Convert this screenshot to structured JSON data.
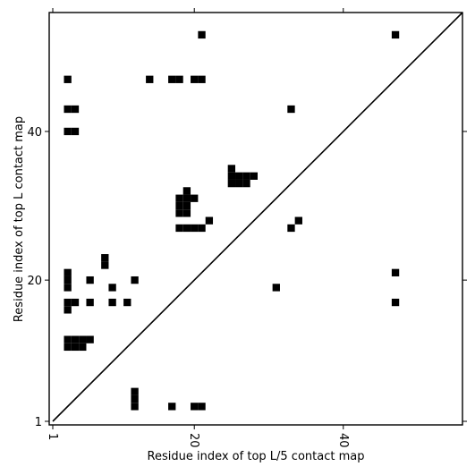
{
  "chart_data": {
    "type": "heatmap",
    "title": "",
    "xlabel": "Residue index of top L/5 contact map",
    "ylabel": "Residue index of top L contact map",
    "xlim": [
      1,
      56
    ],
    "ylim": [
      1,
      56
    ],
    "x_ticks": [
      {
        "value": 1,
        "label": "1"
      },
      {
        "value": 20,
        "label": "20"
      },
      {
        "value": 40,
        "label": "40"
      }
    ],
    "y_ticks": [
      {
        "value": 1,
        "label": "1"
      },
      {
        "value": 20,
        "label": "20"
      },
      {
        "value": 40,
        "label": "40"
      }
    ],
    "diagonal": true,
    "cell_color": "#000000",
    "cells": [
      [
        21,
        53
      ],
      [
        47,
        53
      ],
      [
        3,
        47
      ],
      [
        14,
        47
      ],
      [
        17,
        47
      ],
      [
        18,
        47
      ],
      [
        20,
        47
      ],
      [
        21,
        47
      ],
      [
        3,
        43
      ],
      [
        4,
        43
      ],
      [
        33,
        43
      ],
      [
        3,
        40
      ],
      [
        4,
        40
      ],
      [
        25,
        35
      ],
      [
        25,
        34
      ],
      [
        26,
        34
      ],
      [
        27,
        34
      ],
      [
        28,
        34
      ],
      [
        25,
        33
      ],
      [
        26,
        33
      ],
      [
        27,
        33
      ],
      [
        19,
        32
      ],
      [
        18,
        31
      ],
      [
        19,
        31
      ],
      [
        20,
        31
      ],
      [
        18,
        30
      ],
      [
        19,
        30
      ],
      [
        18,
        29
      ],
      [
        19,
        29
      ],
      [
        22,
        28
      ],
      [
        34,
        28
      ],
      [
        18,
        27
      ],
      [
        19,
        27
      ],
      [
        20,
        27
      ],
      [
        21,
        27
      ],
      [
        33,
        27
      ],
      [
        8,
        23
      ],
      [
        8,
        22
      ],
      [
        3,
        21
      ],
      [
        47,
        21
      ],
      [
        3,
        20
      ],
      [
        6,
        20
      ],
      [
        12,
        20
      ],
      [
        3,
        19
      ],
      [
        9,
        19
      ],
      [
        31,
        19
      ],
      [
        3,
        17
      ],
      [
        4,
        17
      ],
      [
        6,
        17
      ],
      [
        9,
        17
      ],
      [
        11,
        17
      ],
      [
        47,
        17
      ],
      [
        3,
        16
      ],
      [
        3,
        12
      ],
      [
        4,
        12
      ],
      [
        5,
        12
      ],
      [
        6,
        12
      ],
      [
        3,
        11
      ],
      [
        4,
        11
      ],
      [
        5,
        11
      ],
      [
        12,
        5
      ],
      [
        12,
        4
      ],
      [
        12,
        3
      ],
      [
        17,
        3
      ],
      [
        20,
        3
      ],
      [
        21,
        3
      ]
    ]
  }
}
